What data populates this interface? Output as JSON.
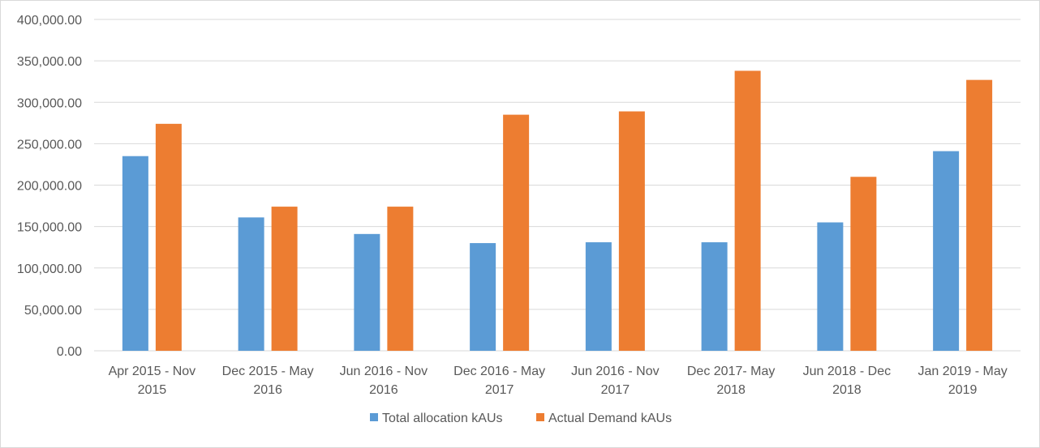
{
  "chart_data": {
    "type": "bar",
    "categories": [
      [
        "Apr 2015 - Nov",
        "2015"
      ],
      [
        "Dec 2015 - May",
        "2016"
      ],
      [
        "Jun 2016 - Nov",
        "2016"
      ],
      [
        "Dec 2016 - May",
        "2017"
      ],
      [
        "Jun 2016 - Nov",
        "2017"
      ],
      [
        "Dec 2017- May",
        "2018"
      ],
      [
        "Jun 2018 - Dec",
        "2018"
      ],
      [
        "Jan 2019 - May",
        "2019"
      ]
    ],
    "series": [
      {
        "name": "Total allocation kAUs",
        "color": "#5b9bd5",
        "values": [
          235000,
          161000,
          141000,
          130000,
          131000,
          131000,
          155000,
          241000
        ]
      },
      {
        "name": "Actual Demand kAUs",
        "color": "#ed7d31",
        "values": [
          274000,
          174000,
          174000,
          285000,
          289000,
          338000,
          210000,
          327000
        ]
      }
    ],
    "yticks": [
      "0.00",
      "50,000.00",
      "100,000.00",
      "150,000.00",
      "200,000.00",
      "250,000.00",
      "300,000.00",
      "350,000.00",
      "400,000.00"
    ],
    "ylim": [
      0,
      400000
    ],
    "grid": true,
    "legend_position": "bottom"
  }
}
